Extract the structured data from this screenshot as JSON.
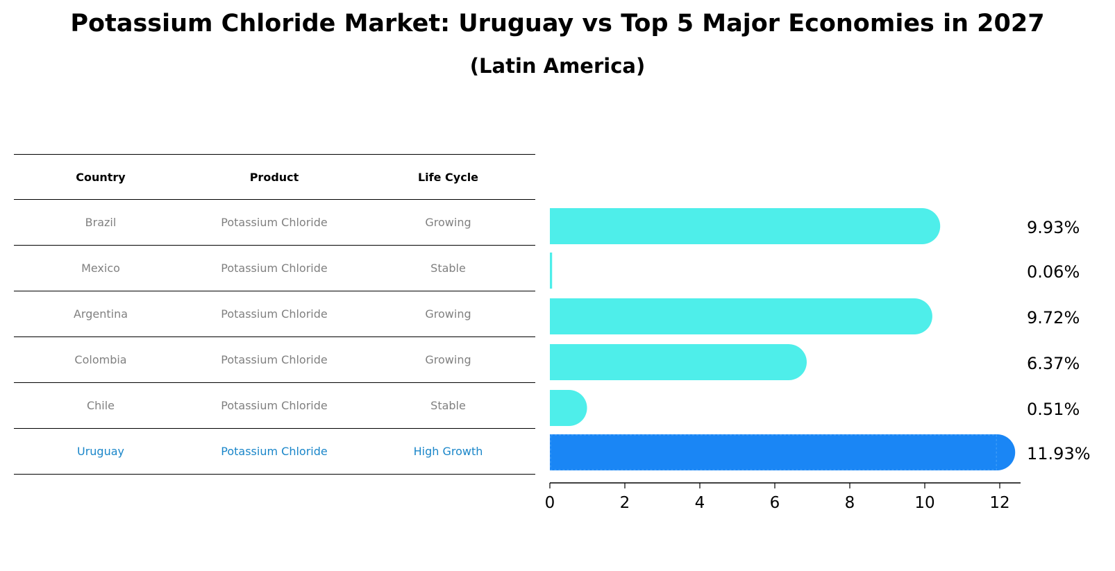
{
  "title": "Potassium Chloride Market: Uruguay vs Top 5 Major Economies in 2027",
  "subtitle": "(Latin America)",
  "table": {
    "headers": [
      "Country",
      "Product",
      "Life Cycle"
    ],
    "rows": [
      {
        "country": "Brazil",
        "product": "Potassium Chloride",
        "lifecycle": "Growing"
      },
      {
        "country": "Mexico",
        "product": "Potassium Chloride",
        "lifecycle": "Stable"
      },
      {
        "country": "Argentina",
        "product": "Potassium Chloride",
        "lifecycle": "Growing"
      },
      {
        "country": "Colombia",
        "product": "Potassium Chloride",
        "lifecycle": "Growing"
      },
      {
        "country": "Chile",
        "product": "Potassium Chloride",
        "lifecycle": "Stable"
      },
      {
        "country": "Uruguay",
        "product": "Potassium Chloride",
        "lifecycle": "High Growth"
      }
    ]
  },
  "colors": {
    "bar": "#4eeeea",
    "highlight_bar": "#1a86f5",
    "highlight_text": "#1a86c9",
    "muted_text": "#808080"
  },
  "chart_data": {
    "type": "bar",
    "orientation": "horizontal",
    "categories": [
      "Brazil",
      "Mexico",
      "Argentina",
      "Colombia",
      "Chile",
      "Uruguay"
    ],
    "values": [
      9.93,
      0.06,
      9.72,
      6.37,
      0.51,
      11.93
    ],
    "value_labels": [
      "9.93%",
      "0.06%",
      "9.72%",
      "6.37%",
      "0.51%",
      "11.93%"
    ],
    "highlight": "Uruguay",
    "xlim": [
      0,
      12.5
    ],
    "xticks": [
      0,
      2,
      4,
      6,
      8,
      10,
      12
    ],
    "xtick_labels": [
      "0",
      "2",
      "4",
      "6",
      "8",
      "10",
      "12"
    ],
    "xlabel": "",
    "ylabel": "",
    "grid": false
  }
}
